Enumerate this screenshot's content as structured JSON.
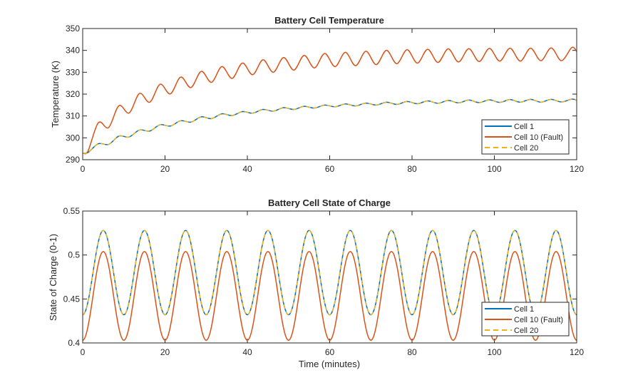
{
  "colors": {
    "cell1": "#0072BD",
    "cell10": "#D95319",
    "cell20": "#EDB120",
    "axis": "#262626"
  },
  "chart_data": [
    {
      "type": "line",
      "title": "Battery Cell Temperature",
      "xlabel": "",
      "ylabel": "Temperature (K)",
      "xlim": [
        0,
        120
      ],
      "ylim": [
        290,
        350
      ],
      "xticks": [
        "0",
        "20",
        "40",
        "60",
        "80",
        "100",
        "120"
      ],
      "yticks": [
        "290",
        "300",
        "310",
        "320",
        "330",
        "340",
        "350"
      ],
      "grid": false,
      "legend": {
        "position": "bottom-right",
        "entries": [
          "Cell 1",
          "Cell 10 (Fault)",
          "Cell 20"
        ]
      },
      "series": [
        {
          "name": "Cell 1",
          "style": "solid",
          "x": [
            0,
            1.3,
            3.8,
            6.3,
            8.8,
            11.3,
            13.8,
            16.3,
            18.8,
            21.3,
            23.8,
            26.3,
            28.8,
            31.3,
            33.8,
            36.3,
            38.8,
            41.3,
            43.8,
            46.3,
            48.8,
            51.3,
            53.8,
            56.3,
            58.8,
            61.3,
            63.8,
            66.3,
            68.8,
            71.3,
            73.8,
            76.3,
            78.8,
            81.3,
            83.8,
            86.3,
            88.8,
            91.3,
            93.8,
            96.3,
            98.8,
            101.3,
            103.8,
            106.3,
            108.8,
            111.3,
            113.8,
            116.3,
            118.8,
            120
          ],
          "values": [
            293.0,
            293.3,
            297.3,
            297.0,
            300.8,
            300.4,
            303.6,
            303.1,
            306.0,
            305.4,
            307.8,
            307.2,
            309.6,
            308.8,
            311.0,
            310.2,
            312.0,
            311.3,
            313.0,
            312.2,
            313.8,
            313.0,
            314.4,
            313.6,
            315.0,
            314.2,
            315.5,
            314.6,
            315.9,
            315.0,
            316.3,
            315.3,
            316.6,
            315.6,
            316.9,
            315.8,
            317.1,
            316.0,
            317.3,
            316.1,
            317.4,
            316.2,
            317.5,
            316.3,
            317.6,
            316.3,
            317.6,
            316.4,
            317.7,
            317.2
          ]
        },
        {
          "name": "Cell 10 (Fault)",
          "style": "solid",
          "x": [
            0,
            1.3,
            3.8,
            6.3,
            8.8,
            11.3,
            13.8,
            16.3,
            18.8,
            21.3,
            23.8,
            26.3,
            28.8,
            31.3,
            33.8,
            36.3,
            38.8,
            41.3,
            43.8,
            46.3,
            48.8,
            51.3,
            53.8,
            56.3,
            58.8,
            61.3,
            63.8,
            66.3,
            68.8,
            71.3,
            73.8,
            76.3,
            78.8,
            81.3,
            83.8,
            86.3,
            88.8,
            91.3,
            93.8,
            96.3,
            98.8,
            101.3,
            103.8,
            106.3,
            108.8,
            111.3,
            113.8,
            116.3,
            118.8,
            120
          ],
          "values": [
            293.0,
            294.0,
            306.9,
            304.7,
            314.7,
            311.4,
            320.3,
            316.3,
            324.5,
            320.1,
            327.8,
            323.0,
            330.4,
            325.4,
            332.6,
            327.2,
            334.2,
            328.9,
            335.7,
            330.0,
            336.7,
            331.0,
            337.7,
            332.0,
            338.6,
            332.6,
            339.1,
            333.0,
            339.6,
            333.5,
            340.0,
            333.9,
            340.3,
            334.2,
            340.5,
            334.5,
            340.7,
            334.7,
            340.8,
            334.9,
            340.9,
            335.1,
            341.0,
            335.1,
            341.0,
            335.3,
            341.1,
            335.3,
            341.3,
            339.5
          ]
        },
        {
          "name": "Cell 20",
          "style": "dashed",
          "x": [
            0,
            1.3,
            3.8,
            6.3,
            8.8,
            11.3,
            13.8,
            16.3,
            18.8,
            21.3,
            23.8,
            26.3,
            28.8,
            31.3,
            33.8,
            36.3,
            38.8,
            41.3,
            43.8,
            46.3,
            48.8,
            51.3,
            53.8,
            56.3,
            58.8,
            61.3,
            63.8,
            66.3,
            68.8,
            71.3,
            73.8,
            76.3,
            78.8,
            81.3,
            83.8,
            86.3,
            88.8,
            91.3,
            93.8,
            96.3,
            98.8,
            101.3,
            103.8,
            106.3,
            108.8,
            111.3,
            113.8,
            116.3,
            118.8,
            120
          ],
          "values": [
            293.0,
            293.3,
            297.3,
            297.0,
            300.8,
            300.4,
            303.6,
            303.1,
            306.0,
            305.4,
            307.8,
            307.2,
            309.6,
            308.8,
            311.0,
            310.2,
            312.0,
            311.3,
            313.0,
            312.2,
            313.8,
            313.0,
            314.4,
            313.6,
            315.0,
            314.2,
            315.5,
            314.6,
            315.9,
            315.0,
            316.3,
            315.3,
            316.6,
            315.6,
            316.9,
            315.8,
            317.1,
            316.0,
            317.3,
            316.1,
            317.4,
            316.2,
            317.5,
            316.3,
            317.6,
            316.3,
            317.6,
            316.4,
            317.7,
            317.2
          ]
        }
      ]
    },
    {
      "type": "line",
      "title": "Battery Cell State of Charge",
      "xlabel": "Time (minutes)",
      "ylabel": "State of Charge (0-1)",
      "xlim": [
        0,
        120
      ],
      "ylim": [
        0.4,
        0.55
      ],
      "xticks": [
        "0",
        "20",
        "40",
        "60",
        "80",
        "100",
        "120"
      ],
      "yticks": [
        "0.4",
        "0.45",
        "0.5",
        "0.55"
      ],
      "grid": false,
      "legend": {
        "position": "bottom-right",
        "entries": [
          "Cell 1",
          "Cell 10 (Fault)",
          "Cell 20"
        ]
      },
      "series": [
        {
          "name": "Cell 1",
          "style": "solid",
          "period": 10,
          "min": 0.432,
          "max": 0.528,
          "x": [
            0,
            5,
            10,
            15,
            20,
            25,
            30,
            35,
            40,
            45,
            50,
            55,
            60,
            65,
            70,
            75,
            80,
            85,
            90,
            95,
            100,
            105,
            110,
            115,
            120
          ],
          "values": [
            0.432,
            0.528,
            0.432,
            0.528,
            0.432,
            0.528,
            0.432,
            0.528,
            0.432,
            0.528,
            0.432,
            0.528,
            0.432,
            0.528,
            0.432,
            0.528,
            0.432,
            0.528,
            0.432,
            0.528,
            0.432,
            0.528,
            0.432,
            0.528,
            0.432
          ]
        },
        {
          "name": "Cell 10 (Fault)",
          "style": "solid",
          "period": 10,
          "min": 0.403,
          "max": 0.504,
          "x": [
            0,
            5,
            10,
            15,
            20,
            25,
            30,
            35,
            40,
            45,
            50,
            55,
            60,
            65,
            70,
            75,
            80,
            85,
            90,
            95,
            100,
            105,
            110,
            115,
            120
          ],
          "values": [
            0.403,
            0.504,
            0.403,
            0.504,
            0.403,
            0.504,
            0.403,
            0.504,
            0.403,
            0.504,
            0.403,
            0.504,
            0.403,
            0.504,
            0.403,
            0.504,
            0.403,
            0.504,
            0.403,
            0.504,
            0.403,
            0.504,
            0.403,
            0.504,
            0.403
          ]
        },
        {
          "name": "Cell 20",
          "style": "dashed",
          "period": 10,
          "min": 0.432,
          "max": 0.528,
          "x": [
            0,
            5,
            10,
            15,
            20,
            25,
            30,
            35,
            40,
            45,
            50,
            55,
            60,
            65,
            70,
            75,
            80,
            85,
            90,
            95,
            100,
            105,
            110,
            115,
            120
          ],
          "values": [
            0.432,
            0.528,
            0.432,
            0.528,
            0.432,
            0.528,
            0.432,
            0.528,
            0.432,
            0.528,
            0.432,
            0.528,
            0.432,
            0.528,
            0.432,
            0.528,
            0.432,
            0.528,
            0.432,
            0.528,
            0.432,
            0.528,
            0.432,
            0.528,
            0.432
          ]
        }
      ]
    }
  ]
}
